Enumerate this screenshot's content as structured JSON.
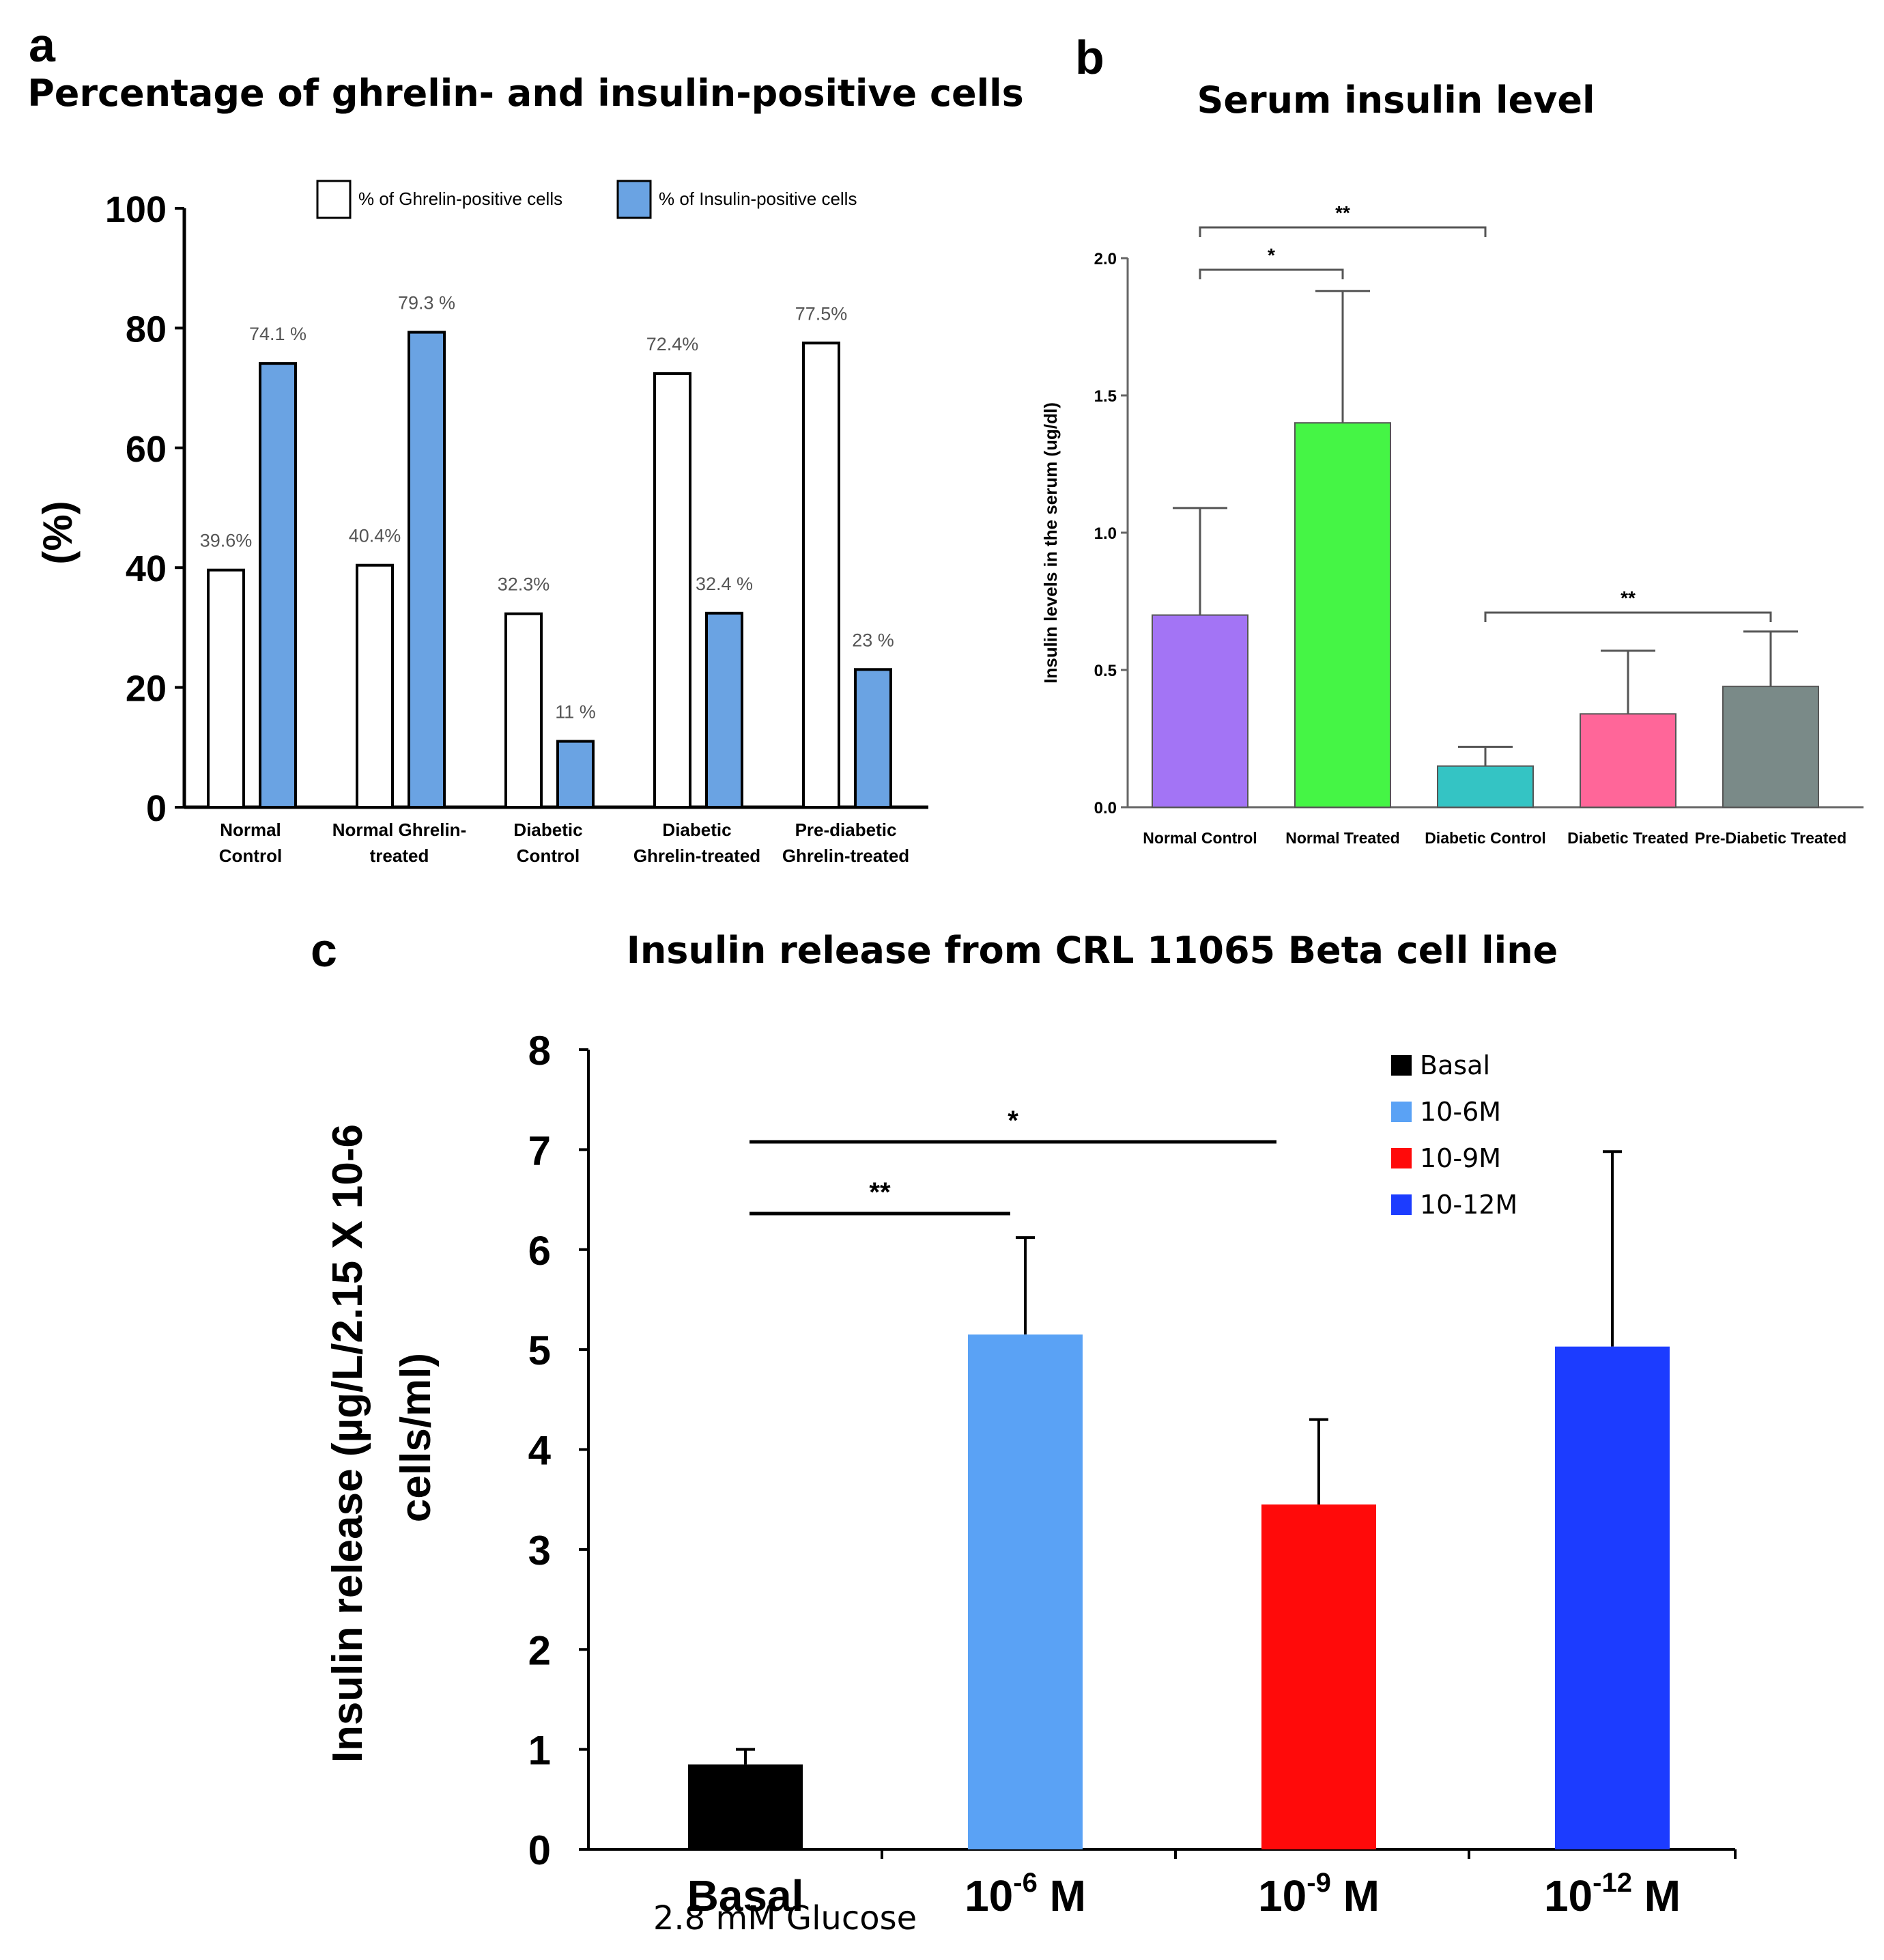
{
  "chart_data": [
    {
      "panel": "a",
      "type": "bar",
      "title": "Percentage of ghrelin- and insulin-positive cells",
      "ylabel": "(%)",
      "xlabel": "",
      "ylim": [
        0,
        100
      ],
      "yticks": [
        "0",
        "20",
        "40",
        "60",
        "80",
        "100"
      ],
      "categories": [
        [
          "Normal",
          "Control"
        ],
        [
          "Normal Ghrelin-",
          "treated"
        ],
        [
          "Diabetic",
          "Control"
        ],
        [
          "Diabetic",
          "Ghrelin-treated"
        ],
        [
          "Pre-diabetic",
          "Ghrelin-treated"
        ]
      ],
      "series": [
        {
          "name": "% of Ghrelin-positive cells",
          "color": "#ffffff",
          "values": [
            39.6,
            40.4,
            32.3,
            72.4,
            77.5
          ],
          "labels": [
            "39.6%",
            "40.4%",
            "32.3%",
            "72.4%",
            "77.5%"
          ]
        },
        {
          "name": "% of Insulin-positive cells",
          "color": "#6aa3e3",
          "values": [
            74.1,
            79.3,
            11,
            32.4,
            23
          ],
          "labels": [
            "74.1 %",
            "79.3 %",
            "11 %",
            "32.4 %",
            "23 %"
          ]
        }
      ],
      "legend": "top"
    },
    {
      "panel": "b",
      "type": "bar",
      "title": "Serum insulin level",
      "ylabel": "Insulin levels in the serum (ug/dl)",
      "xlabel": "",
      "ylim": [
        0,
        2.0
      ],
      "yticks": [
        "0.0",
        "0.5",
        "1.0",
        "1.5",
        "2.0"
      ],
      "categories": [
        "Normal Control",
        "Normal Treated",
        "Diabetic Control",
        "Diabetic Treated",
        "Pre-Diabetic Treated"
      ],
      "values": [
        0.7,
        1.4,
        0.15,
        0.34,
        0.44
      ],
      "errors": [
        0.39,
        0.48,
        0.07,
        0.23,
        0.2
      ],
      "colors": [
        "#a374f5",
        "#45f545",
        "#34c4c4",
        "#ff6699",
        "#7a8a88"
      ],
      "significance": [
        {
          "from": 0,
          "to": 1,
          "label": "*"
        },
        {
          "from": 0,
          "to": 2,
          "label": "**"
        },
        {
          "from": 2,
          "to": 4,
          "label": "**"
        }
      ]
    },
    {
      "panel": "c",
      "type": "bar",
      "title": "Insulin release from CRL 11065 Beta cell line",
      "ylabel_lines": [
        "Insulin release (µg/L/2.15 X 10-6",
        "cells/ml)"
      ],
      "xlabel": "",
      "ylim": [
        0,
        8
      ],
      "yticks": [
        "0",
        "1",
        "2",
        "3",
        "4",
        "5",
        "6",
        "7",
        "8"
      ],
      "categories": [
        {
          "base": "Basal",
          "exp": "",
          "unit": ""
        },
        {
          "base": "10",
          "exp": "-6",
          "unit": " M"
        },
        {
          "base": "10",
          "exp": "-9",
          "unit": " M"
        },
        {
          "base": "10",
          "exp": "-12",
          "unit": " M"
        }
      ],
      "subcaption": "2.8 mM Glucose",
      "values": [
        0.85,
        5.15,
        3.45,
        5.03
      ],
      "errors": [
        0.15,
        0.97,
        0.85,
        1.95
      ],
      "colors": [
        "#000000",
        "#5aa2f5",
        "#ff0a0a",
        "#1c3cff"
      ],
      "legend_entries": [
        {
          "label": "Basal",
          "color": "#000000"
        },
        {
          "label": "10-6M",
          "color": "#5aa2f5"
        },
        {
          "label": "10-9M",
          "color": "#ff0a0a"
        },
        {
          "label": "10-12M",
          "color": "#1c3cff"
        }
      ],
      "significance": [
        {
          "from": 0,
          "to": 1,
          "label": "**"
        },
        {
          "from": 0,
          "to": 2,
          "label": "*"
        }
      ]
    }
  ],
  "panel_labels": {
    "a": "a",
    "b": "b",
    "c": "c"
  }
}
